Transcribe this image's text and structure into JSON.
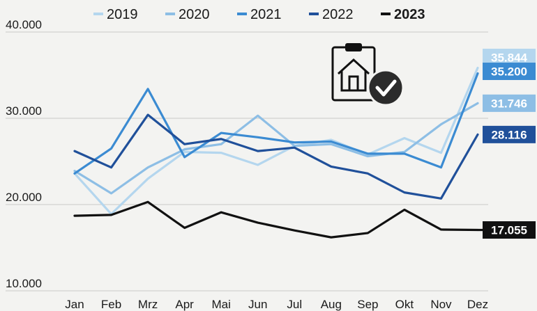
{
  "chart_data": {
    "type": "line",
    "categories": [
      "Jan",
      "Feb",
      "Mrz",
      "Apr",
      "Mai",
      "Jun",
      "Jul",
      "Aug",
      "Sep",
      "Okt",
      "Nov",
      "Dez"
    ],
    "yticks": [
      "10.000",
      "20.000",
      "30.000",
      "40.000"
    ],
    "ylim": [
      10000,
      40000
    ],
    "grid": true,
    "legend_position": "top",
    "series": [
      {
        "name": "2019",
        "color": "#b4d6ee",
        "values": [
          23600,
          18900,
          23000,
          26100,
          26000,
          24600,
          26800,
          27500,
          25800,
          27700,
          26000,
          35844
        ],
        "end_label": "35.844",
        "end_value": 35844
      },
      {
        "name": "2020",
        "color": "#8dbee5",
        "values": [
          23900,
          21300,
          24300,
          26400,
          27000,
          30300,
          26800,
          27000,
          25600,
          26100,
          29300,
          31746
        ],
        "end_label": "31.746",
        "end_value": 31746
      },
      {
        "name": "2021",
        "color": "#3b8bd2",
        "values": [
          23600,
          26500,
          33400,
          25500,
          28300,
          27800,
          27200,
          27300,
          25900,
          25900,
          24300,
          35200
        ],
        "end_label": "35.200",
        "end_value": 35200
      },
      {
        "name": "2022",
        "color": "#20509a",
        "values": [
          26200,
          24300,
          30400,
          27000,
          27600,
          26200,
          26600,
          24400,
          23600,
          21400,
          20700,
          28116
        ],
        "end_label": "28.116",
        "end_value": 28116
      },
      {
        "name": "2023",
        "color": "#111111",
        "values": [
          18700,
          18800,
          20300,
          17300,
          19100,
          17900,
          17000,
          16200,
          16700,
          19400,
          17100,
          17055
        ],
        "end_label": "17.055",
        "end_value": 17055
      }
    ]
  }
}
